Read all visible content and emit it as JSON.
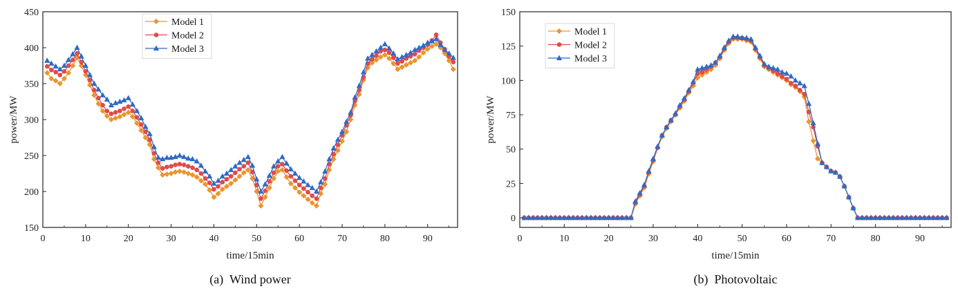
{
  "chart_data": [
    {
      "type": "line",
      "caption": "(a)  Wind power",
      "xlabel": "time/15min",
      "ylabel": "power/MW",
      "xlim": [
        0,
        97
      ],
      "ylim": [
        150,
        450
      ],
      "xticks": [
        0,
        10,
        20,
        30,
        40,
        50,
        60,
        70,
        80,
        90
      ],
      "yticks": [
        150,
        200,
        250,
        300,
        350,
        400,
        450
      ],
      "grid": false,
      "legend_position": "top-center",
      "x": [
        1,
        2,
        3,
        4,
        5,
        6,
        7,
        8,
        9,
        10,
        11,
        12,
        13,
        14,
        15,
        16,
        17,
        18,
        19,
        20,
        21,
        22,
        23,
        24,
        25,
        26,
        27,
        28,
        29,
        30,
        31,
        32,
        33,
        34,
        35,
        36,
        37,
        38,
        39,
        40,
        41,
        42,
        43,
        44,
        45,
        46,
        47,
        48,
        49,
        50,
        51,
        52,
        53,
        54,
        55,
        56,
        57,
        58,
        59,
        60,
        61,
        62,
        63,
        64,
        65,
        66,
        67,
        68,
        69,
        70,
        71,
        72,
        73,
        74,
        75,
        76,
        77,
        78,
        79,
        80,
        81,
        82,
        83,
        84,
        85,
        86,
        87,
        88,
        89,
        90,
        91,
        92,
        93,
        94,
        95,
        96
      ],
      "series": [
        {
          "name": "Model 1",
          "color": "#e8962f",
          "marker": "diamond",
          "values": [
            365,
            357,
            354,
            350,
            357,
            365,
            375,
            386,
            375,
            362,
            348,
            334,
            322,
            312,
            305,
            300,
            302,
            304,
            307,
            310,
            304,
            295,
            285,
            275,
            265,
            245,
            233,
            223,
            224,
            225,
            227,
            228,
            227,
            225,
            223,
            220,
            215,
            210,
            202,
            192,
            197,
            203,
            207,
            211,
            216,
            221,
            226,
            230,
            218,
            200,
            180,
            192,
            205,
            218,
            228,
            230,
            220,
            211,
            205,
            199,
            194,
            189,
            184,
            180,
            197,
            210,
            230,
            245,
            257,
            270,
            283,
            300,
            320,
            335,
            355,
            372,
            379,
            383,
            387,
            390,
            385,
            378,
            370,
            373,
            376,
            379,
            382,
            387,
            393,
            398,
            402,
            405,
            400,
            392,
            382,
            370
          ]
        },
        {
          "name": "Model 2",
          "color": "#e24a4a",
          "marker": "circle",
          "values": [
            374,
            369,
            366,
            362,
            367,
            375,
            383,
            392,
            380,
            367,
            355,
            341,
            330,
            320,
            312,
            308,
            310,
            312,
            315,
            318,
            312,
            303,
            293,
            283,
            272,
            253,
            240,
            232,
            234,
            235,
            237,
            238,
            237,
            235,
            233,
            230,
            225,
            218,
            212,
            203,
            207,
            213,
            217,
            221,
            226,
            231,
            235,
            240,
            227,
            209,
            190,
            201,
            214,
            226,
            235,
            238,
            229,
            221,
            215,
            209,
            204,
            199,
            194,
            190,
            205,
            218,
            238,
            252,
            265,
            278,
            292,
            306,
            326,
            341,
            359,
            378,
            384,
            389,
            395,
            397,
            393,
            386,
            378,
            381,
            385,
            388,
            391,
            396,
            400,
            404,
            410,
            418,
            407,
            398,
            388,
            380
          ]
        },
        {
          "name": "Model 3",
          "color": "#2f6bc4",
          "marker": "triangle",
          "values": [
            382,
            378,
            374,
            370,
            375,
            383,
            391,
            400,
            388,
            375,
            362,
            350,
            342,
            334,
            328,
            320,
            323,
            325,
            327,
            330,
            321,
            312,
            302,
            290,
            280,
            262,
            247,
            245,
            247,
            247,
            248,
            250,
            248,
            246,
            245,
            242,
            236,
            228,
            221,
            211,
            215,
            221,
            225,
            230,
            235,
            240,
            244,
            248,
            236,
            217,
            200,
            210,
            222,
            235,
            242,
            248,
            239,
            231,
            225,
            219,
            214,
            209,
            205,
            200,
            213,
            228,
            245,
            260,
            272,
            283,
            297,
            310,
            331,
            347,
            366,
            385,
            390,
            395,
            400,
            405,
            399,
            392,
            384,
            387,
            390,
            393,
            397,
            400,
            403,
            407,
            409,
            412,
            404,
            397,
            392,
            386
          ]
        }
      ]
    },
    {
      "type": "line",
      "caption": "(b)  Photovoltaic",
      "xlabel": "time/15min",
      "ylabel": "power/MW",
      "xlim": [
        0,
        97
      ],
      "ylim": [
        -7,
        150
      ],
      "xticks": [
        0,
        10,
        20,
        30,
        40,
        50,
        60,
        70,
        80,
        90
      ],
      "yticks": [
        0,
        25,
        50,
        75,
        100,
        125,
        150
      ],
      "grid": false,
      "legend_position": "top-left",
      "x": [
        1,
        2,
        3,
        4,
        5,
        6,
        7,
        8,
        9,
        10,
        11,
        12,
        13,
        14,
        15,
        16,
        17,
        18,
        19,
        20,
        21,
        22,
        23,
        24,
        25,
        26,
        27,
        28,
        29,
        30,
        31,
        32,
        33,
        34,
        35,
        36,
        37,
        38,
        39,
        40,
        41,
        42,
        43,
        44,
        45,
        46,
        47,
        48,
        49,
        50,
        51,
        52,
        53,
        54,
        55,
        56,
        57,
        58,
        59,
        60,
        61,
        62,
        63,
        64,
        65,
        66,
        67,
        68,
        69,
        70,
        71,
        72,
        73,
        74,
        75,
        76,
        77,
        78,
        79,
        80,
        81,
        82,
        83,
        84,
        85,
        86,
        87,
        88,
        89,
        90,
        91,
        92,
        93,
        94,
        95,
        96
      ],
      "series": [
        {
          "name": "Model 1",
          "color": "#e8962f",
          "marker": "diamond",
          "values": [
            0,
            0,
            0,
            0,
            0,
            0,
            0,
            0,
            0,
            0,
            0,
            0,
            0,
            0,
            0,
            0,
            0,
            0,
            0,
            0,
            0,
            0,
            0,
            0,
            0,
            10,
            16,
            22,
            32,
            41,
            51,
            59,
            65,
            70,
            75,
            80,
            85,
            91,
            96,
            102,
            104,
            106,
            108,
            111,
            116,
            122,
            127,
            130,
            130,
            130,
            129,
            128,
            122,
            116,
            110,
            108,
            106,
            104,
            102,
            100,
            97,
            95,
            92,
            88,
            70,
            56,
            43,
            40,
            37,
            34,
            33,
            30,
            23,
            15,
            7,
            0,
            0,
            0,
            0,
            0,
            0,
            0,
            0,
            0,
            0,
            0,
            0,
            0,
            0,
            0,
            0,
            0,
            0,
            0,
            0,
            0
          ]
        },
        {
          "name": "Model 2",
          "color": "#e24a4a",
          "marker": "circle",
          "values": [
            0,
            0,
            0,
            0,
            0,
            0,
            0,
            0,
            0,
            0,
            0,
            0,
            0,
            0,
            0,
            0,
            0,
            0,
            0,
            0,
            0,
            0,
            0,
            0,
            0,
            11,
            17,
            23,
            33,
            42,
            51,
            60,
            66,
            71,
            75,
            81,
            86,
            92,
            98,
            105,
            106,
            108,
            110,
            113,
            117,
            123,
            128,
            131,
            131,
            131,
            130,
            129,
            123,
            117,
            111,
            109,
            107,
            105,
            103,
            101,
            98,
            96,
            93,
            90,
            77,
            66,
            52,
            40,
            37,
            34,
            33,
            30,
            23,
            15,
            7,
            0,
            0,
            0,
            0,
            0,
            0,
            0,
            0,
            0,
            0,
            0,
            0,
            0,
            0,
            0,
            0,
            0,
            0,
            0,
            0,
            0
          ]
        },
        {
          "name": "Model 3",
          "color": "#2f6bc4",
          "marker": "triangle",
          "values": [
            0,
            0,
            0,
            0,
            0,
            0,
            0,
            0,
            0,
            0,
            0,
            0,
            0,
            0,
            0,
            0,
            0,
            0,
            0,
            0,
            0,
            0,
            0,
            0,
            0,
            12,
            18,
            24,
            34,
            43,
            52,
            60,
            66,
            71,
            76,
            82,
            87,
            93,
            99,
            108,
            109,
            110,
            111,
            113,
            118,
            124,
            129,
            132,
            132,
            131,
            131,
            130,
            124,
            118,
            112,
            110,
            109,
            108,
            106,
            105,
            103,
            100,
            98,
            96,
            83,
            69,
            54,
            40,
            37,
            34,
            33,
            30,
            23,
            15,
            7,
            0,
            0,
            0,
            0,
            0,
            0,
            0,
            0,
            0,
            0,
            0,
            0,
            0,
            0,
            0,
            0,
            0,
            0,
            0,
            0,
            0
          ]
        }
      ]
    }
  ]
}
